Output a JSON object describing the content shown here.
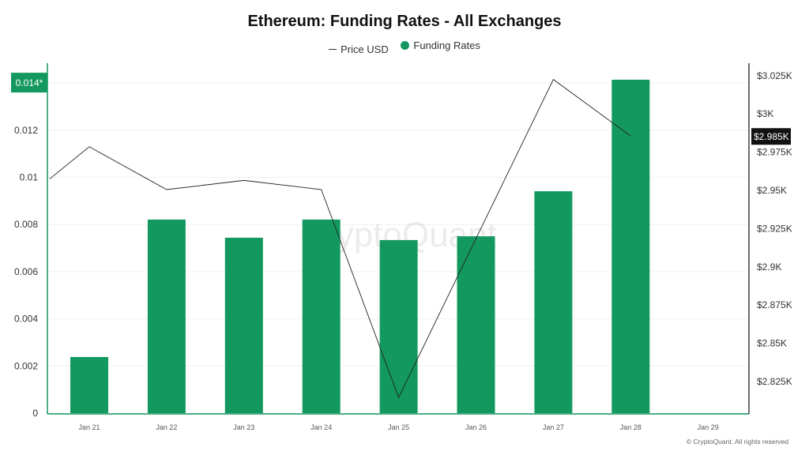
{
  "chart_data": {
    "type": "bar",
    "title": "Ethereum: Funding Rates - All Exchanges",
    "legend": [
      {
        "name": "Price USD",
        "kind": "line"
      },
      {
        "name": "Funding Rates",
        "kind": "bar"
      }
    ],
    "categories": [
      "Jan 21",
      "Jan 22",
      "Jan 23",
      "Jan 24",
      "Jan 25",
      "Jan 26",
      "Jan 27",
      "Jan 28",
      "Jan 29"
    ],
    "series": [
      {
        "name": "Funding Rates",
        "axis": "left",
        "values": [
          0.00238,
          0.00821,
          0.00744,
          0.00821,
          0.00734,
          0.0075,
          0.00941,
          0.01414,
          null
        ]
      },
      {
        "name": "Price USD",
        "axis": "right",
        "start_value": 2957,
        "values": [
          2978,
          2950,
          2956,
          2950,
          2814,
          2918,
          3022,
          2985,
          null
        ]
      }
    ],
    "left_axis": {
      "ticks": [
        "0",
        "0.002",
        "0.004",
        "0.006",
        "0.008",
        "0.01",
        "0.012"
      ],
      "tick_values": [
        0,
        0.002,
        0.004,
        0.006,
        0.008,
        0.01,
        0.012
      ],
      "range": [
        0,
        0.0149
      ],
      "highlight_label": "0.014*",
      "highlight_value": 0.014
    },
    "right_axis": {
      "ticks": [
        "$2.825K",
        "$2.85K",
        "$2.875K",
        "$2.9K",
        "$2.925K",
        "$2.95K",
        "$2.975K",
        "$3K",
        "$3.025K"
      ],
      "tick_values": [
        2825,
        2850,
        2875,
        2900,
        2925,
        2950,
        2975,
        3000,
        3025
      ],
      "highlight_label": "$2.985K",
      "highlight_value": 2985
    },
    "watermark": "CryptoQuant",
    "colors": {
      "bar": "#13995f",
      "line": "#222222",
      "highlight_bg": "#111111"
    }
  },
  "copyright": "© CryptoQuant. All rights reserved"
}
